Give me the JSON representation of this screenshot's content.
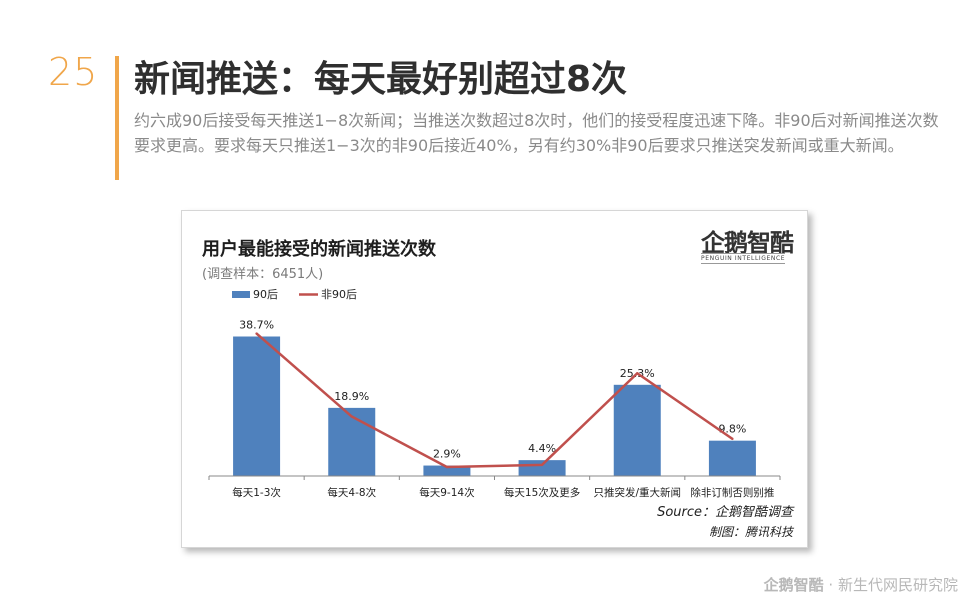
{
  "page": {
    "number": "25",
    "title": "新闻推送：每天最好别超过8次",
    "description": "约六成90后接受每天推送1−8次新闻；当推送次数超过8次时，他们的接受程度迅速下降。非90后对新闻推送次数要求更高。要求每天只推送1−3次的非90后接近40%，另有约30%非90后要求只推送突发新闻或重大新闻。",
    "accent_color": "#f0a64a"
  },
  "card": {
    "brand_zh": "企鹅智酷",
    "brand_en": "PENGUIN INTELLIGENCE",
    "source": "Source：企鹅智酷调查",
    "made_by": "制图：腾讯科技"
  },
  "footer": {
    "brand": "企鹅智酷",
    "separator": "·",
    "org": "新生代网民研究院"
  },
  "chart_data": {
    "type": "bar",
    "title": "用户最能接受的新闻推送次数",
    "subtitle": "(调查样本：6451人)",
    "categories": [
      "每天1-3次",
      "每天4-8次",
      "每天9-14次",
      "每天15次及更多",
      "只推突发/重大新闻",
      "除非订制否则别推"
    ],
    "series": [
      {
        "name": "90后",
        "type": "bar",
        "color": "#4f81bd",
        "values": [
          38.7,
          18.9,
          2.9,
          4.4,
          25.3,
          9.8
        ],
        "labels": [
          "38.7%",
          "18.9%",
          "2.9%",
          "4.4%",
          "25.3%",
          "9.8%"
        ]
      },
      {
        "name": "非90后",
        "type": "line",
        "color": "#c0504d",
        "values": [
          39.5,
          16.5,
          2.5,
          3.1,
          28.5,
          10.3
        ]
      }
    ],
    "ylim": [
      0,
      43
    ],
    "legend_position": "top-left",
    "grid": false
  }
}
